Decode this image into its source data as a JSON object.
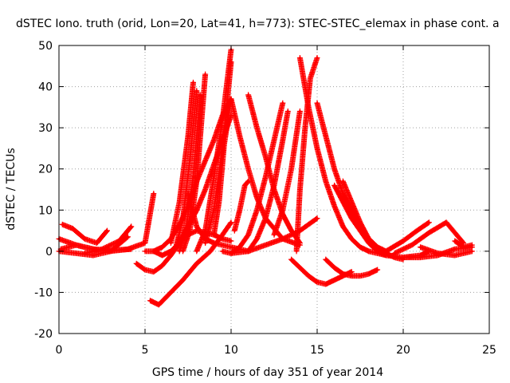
{
  "chart_data": {
    "type": "scatter",
    "title": "dSTEC Iono. truth (orid, Lon=20, Lat=41, h=773): STEC-STEC_elemax in phase cont. a",
    "xlabel": "GPS time / hours of day 351 of year 2014",
    "ylabel": "dSTEC  / TECUs",
    "xlim": [
      0,
      25
    ],
    "ylim": [
      -20,
      50
    ],
    "xticks": [
      0,
      5,
      10,
      15,
      20,
      25
    ],
    "yticks": [
      -20,
      -10,
      0,
      10,
      20,
      30,
      40,
      50
    ],
    "grid": true,
    "marker": "plus",
    "color": "#ff0000",
    "series": [
      {
        "x": [
          0.0,
          1.0,
          2.0,
          3.0,
          4.2
        ],
        "y": [
          3.0,
          1.5,
          0.5,
          0.2,
          0.5
        ]
      },
      {
        "x": [
          0.1,
          1.0,
          2.0,
          3.0,
          4.0,
          5.0,
          5.5
        ],
        "y": [
          0.5,
          1.5,
          0.5,
          0.0,
          0.5,
          2.0,
          14.0
        ]
      },
      {
        "x": [
          0.2,
          0.8,
          1.5,
          2.2,
          2.8
        ],
        "y": [
          6.5,
          5.5,
          3.0,
          2.0,
          5.0
        ]
      },
      {
        "x": [
          0.0,
          1.0,
          2.0,
          3.0,
          4.0
        ],
        "y": [
          0.0,
          -0.5,
          -1.0,
          0.0,
          3.5
        ]
      },
      {
        "x": [
          1.5,
          2.5,
          3.5,
          4.2
        ],
        "y": [
          -0.5,
          0.5,
          2.5,
          6.0
        ]
      },
      {
        "x": [
          4.5,
          5.0,
          5.5,
          6.0,
          6.5,
          7.0,
          7.5,
          8.0
        ],
        "y": [
          -3.0,
          -4.5,
          -5.0,
          -3.5,
          -1.0,
          2.0,
          6.0,
          10.0
        ]
      },
      {
        "x": [
          5.0,
          5.5,
          6.0,
          6.5,
          7.0,
          7.5,
          8.0,
          8.5,
          9.0,
          9.5,
          10.0
        ],
        "y": [
          0.0,
          0.0,
          1.0,
          3.0,
          6.5,
          11.0,
          17.0,
          22.0,
          27.0,
          33.0,
          37.0
        ]
      },
      {
        "x": [
          5.5,
          6.0,
          6.5,
          7.0,
          7.5,
          8.0,
          8.5,
          9.0,
          9.5,
          10.0
        ],
        "y": [
          0.0,
          -1.0,
          0.0,
          2.0,
          6.0,
          10.0,
          15.0,
          21.0,
          27.0,
          33.0
        ]
      },
      {
        "x": [
          5.3,
          5.8,
          6.5,
          7.2,
          8.0,
          8.8,
          9.5,
          10.0
        ],
        "y": [
          -12.0,
          -13.0,
          -10.0,
          -7.0,
          -3.0,
          0.0,
          4.0,
          7.0
        ]
      },
      {
        "x": [
          6.5,
          7.0,
          7.5,
          7.8
        ],
        "y": [
          2.0,
          12.0,
          28.0,
          41.0
        ]
      },
      {
        "x": [
          6.8,
          7.2,
          7.6,
          8.0
        ],
        "y": [
          1.0,
          8.0,
          22.0,
          39.0
        ]
      },
      {
        "x": [
          7.0,
          7.4,
          7.8,
          8.2
        ],
        "y": [
          0.0,
          6.0,
          18.0,
          38.0
        ]
      },
      {
        "x": [
          7.2,
          7.6,
          8.0,
          8.5
        ],
        "y": [
          0.0,
          5.0,
          17.0,
          43.0
        ]
      },
      {
        "x": [
          7.5,
          8.0,
          8.5,
          9.0,
          9.5,
          10.0,
          10.5,
          11.0
        ],
        "y": [
          14.0,
          6.0,
          3.0,
          2.0,
          1.5,
          1.0,
          0.5,
          0.0
        ]
      },
      {
        "x": [
          7.0,
          8.0,
          9.0,
          9.5,
          10.0
        ],
        "y": [
          3.0,
          5.0,
          4.0,
          3.0,
          2.5
        ]
      },
      {
        "x": [
          8.0,
          8.5,
          9.0,
          9.5,
          10.0
        ],
        "y": [
          0.0,
          5.0,
          18.0,
          32.0,
          49.0
        ]
      },
      {
        "x": [
          8.5,
          9.0,
          9.5,
          10.0
        ],
        "y": [
          2.0,
          10.0,
          25.0,
          46.0
        ]
      },
      {
        "x": [
          9.0,
          9.3,
          9.6,
          10.0
        ],
        "y": [
          4.0,
          12.0,
          26.0,
          37.0
        ]
      },
      {
        "x": [
          10.0,
          10.5,
          11.0,
          11.5,
          12.0,
          13.0,
          14.0
        ],
        "y": [
          37.0,
          28.0,
          20.0,
          13.0,
          8.0,
          3.0,
          1.5
        ]
      },
      {
        "x": [
          10.2,
          10.5,
          10.8,
          11.0
        ],
        "y": [
          5.0,
          10.0,
          16.0,
          17.0
        ]
      },
      {
        "x": [
          9.5,
          10.0,
          10.5,
          11.0,
          11.5,
          12.0,
          12.5,
          13.0
        ],
        "y": [
          0.0,
          -0.5,
          1.0,
          4.0,
          10.0,
          18.0,
          27.0,
          36.0
        ]
      },
      {
        "x": [
          11.0,
          11.5,
          12.0,
          12.5,
          13.0,
          13.5,
          14.0
        ],
        "y": [
          38.0,
          30.0,
          23.0,
          15.0,
          9.0,
          5.0,
          2.0
        ]
      },
      {
        "x": [
          10.0,
          11.0,
          12.0,
          13.0,
          14.0,
          15.0
        ],
        "y": [
          -0.5,
          0.0,
          1.5,
          3.0,
          5.0,
          8.0
        ]
      },
      {
        "x": [
          11.0,
          11.5,
          12.0,
          12.5,
          13.0,
          13.3
        ],
        "y": [
          0.0,
          3.0,
          8.0,
          16.0,
          27.0,
          34.0
        ]
      },
      {
        "x": [
          12.5,
          13.0,
          13.5,
          14.0
        ],
        "y": [
          4.0,
          10.0,
          20.0,
          34.0
        ]
      },
      {
        "x": [
          13.8,
          14.0,
          14.3,
          14.6,
          15.0
        ],
        "y": [
          0.0,
          15.0,
          30.0,
          42.0,
          47.0
        ]
      },
      {
        "x": [
          14.0,
          14.5,
          15.0,
          15.5,
          16.0,
          16.5,
          17.0,
          17.5,
          18.0
        ],
        "y": [
          47.0,
          35.0,
          25.0,
          17.0,
          11.0,
          6.0,
          3.0,
          1.0,
          0.0
        ]
      },
      {
        "x": [
          15.0,
          15.5,
          16.0,
          16.5,
          17.0,
          17.5,
          18.0,
          18.5,
          19.0
        ],
        "y": [
          36.0,
          28.0,
          20.0,
          14.0,
          10.0,
          6.0,
          3.0,
          1.0,
          0.0
        ]
      },
      {
        "x": [
          13.5,
          14.0,
          14.5,
          15.0,
          15.5,
          16.0,
          16.5,
          17.0
        ],
        "y": [
          -2.0,
          -4.0,
          -6.0,
          -7.5,
          -8.0,
          -7.0,
          -6.0,
          -5.0
        ]
      },
      {
        "x": [
          15.5,
          16.0,
          16.5,
          17.0,
          17.5,
          18.0,
          18.5
        ],
        "y": [
          -2.0,
          -4.0,
          -5.5,
          -6.0,
          -6.0,
          -5.5,
          -4.5
        ]
      },
      {
        "x": [
          16.0,
          16.5,
          17.0,
          17.5,
          18.0,
          18.5,
          19.0
        ],
        "y": [
          16.0,
          12.0,
          8.0,
          5.0,
          2.0,
          0.0,
          -1.0
        ]
      },
      {
        "x": [
          16.5,
          17.0,
          17.5,
          18.0,
          18.5,
          19.0,
          19.5,
          20.0
        ],
        "y": [
          17.0,
          12.0,
          7.0,
          3.0,
          1.0,
          -0.5,
          -1.5,
          -2.0
        ]
      },
      {
        "x": [
          18.0,
          19.0,
          20.0,
          21.0,
          21.5
        ],
        "y": [
          0.0,
          -1.0,
          -1.5,
          -1.0,
          0.0
        ]
      },
      {
        "x": [
          19.5,
          20.5,
          21.5,
          22.5,
          23.5
        ],
        "y": [
          -0.5,
          1.5,
          4.5,
          7.0,
          2.0
        ]
      },
      {
        "x": [
          20.0,
          21.0,
          22.0,
          23.0,
          24.0
        ],
        "y": [
          -1.5,
          -1.5,
          -1.0,
          0.5,
          1.0
        ]
      },
      {
        "x": [
          19.0,
          20.0,
          20.8,
          21.5
        ],
        "y": [
          0.0,
          2.5,
          5.0,
          7.0
        ]
      },
      {
        "x": [
          21.0,
          22.0,
          23.0,
          24.0
        ],
        "y": [
          1.0,
          -0.5,
          -1.0,
          0.0
        ]
      },
      {
        "x": [
          23.0,
          23.5,
          24.0
        ],
        "y": [
          2.5,
          1.0,
          1.5
        ]
      }
    ]
  }
}
